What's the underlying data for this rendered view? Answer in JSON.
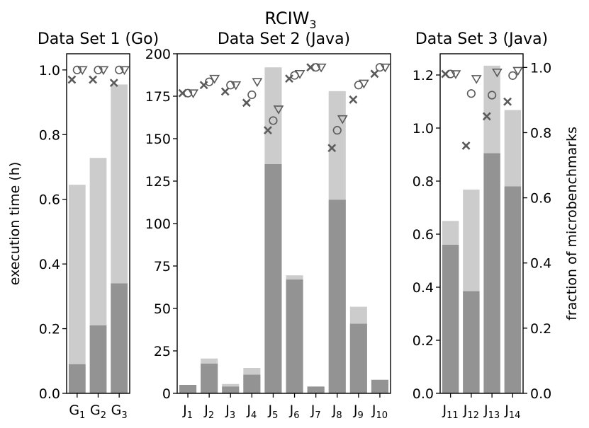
{
  "suptitle": "RCIW",
  "suptitle_sub": "3",
  "colors": {
    "dark": "#939393",
    "light": "#cccccc",
    "marker": "#5a5a5a",
    "axis": "#000000"
  },
  "legend_markers": {
    "x": "cross-marker",
    "o": "circle-marker",
    "v": "triangle-down-marker"
  },
  "left_axis_label": "execution time (h)",
  "right_axis_label": "fraction of microbenchmarks",
  "chart_data": [
    {
      "type": "bar",
      "title": "Data Set 1 (Go)",
      "categories": [
        {
          "main": "G",
          "sub": "1"
        },
        {
          "main": "G",
          "sub": "2"
        },
        {
          "main": "G",
          "sub": "3"
        }
      ],
      "ylim": [
        0,
        1.05
      ],
      "yticks": [
        0.0,
        0.2,
        0.4,
        0.6,
        0.8,
        1.0
      ],
      "ytick_labels": [
        "0.0",
        "0.2",
        "0.4",
        "0.6",
        "0.8",
        "1.0"
      ],
      "series": [
        {
          "name": "dark",
          "values": [
            0.09,
            0.21,
            0.34
          ]
        },
        {
          "name": "light",
          "values": [
            0.645,
            0.728,
            0.955
          ]
        }
      ],
      "markers_ylim": [
        0,
        1.05
      ],
      "markers": {
        "x": [
          0.97,
          0.97,
          0.96
        ],
        "o": [
          1.0,
          1.0,
          1.0
        ],
        "v": [
          1.0,
          1.0,
          1.0
        ]
      }
    },
    {
      "type": "bar",
      "title": "Data Set 2 (Java)",
      "categories": [
        {
          "main": "J",
          "sub": "1"
        },
        {
          "main": "J",
          "sub": "2"
        },
        {
          "main": "J",
          "sub": "3"
        },
        {
          "main": "J",
          "sub": "4"
        },
        {
          "main": "J",
          "sub": "5"
        },
        {
          "main": "J",
          "sub": "6"
        },
        {
          "main": "J",
          "sub": "7"
        },
        {
          "main": "J",
          "sub": "8"
        },
        {
          "main": "J",
          "sub": "9"
        },
        {
          "main": "J",
          "sub": "10"
        }
      ],
      "ylim": [
        0,
        200
      ],
      "yticks": [
        0,
        25,
        50,
        75,
        100,
        125,
        150,
        175,
        200
      ],
      "ytick_labels": [
        "0",
        "25",
        "50",
        "75",
        "100",
        "125",
        "150",
        "175",
        "200"
      ],
      "series": [
        {
          "name": "dark",
          "values": [
            5,
            17.5,
            4,
            11,
            135,
            67,
            4,
            114,
            41,
            8
          ]
        },
        {
          "name": "light",
          "values": [
            5,
            20.5,
            5.5,
            15,
            192,
            69.5,
            4,
            178,
            51,
            8
          ]
        }
      ],
      "markers_ylim": [
        0,
        1.052
      ],
      "markers": {
        "x": [
          0.93,
          0.955,
          0.935,
          0.9,
          0.815,
          0.975,
          1.01,
          0.76,
          0.91,
          0.99
        ],
        "o": [
          0.93,
          0.965,
          0.955,
          0.925,
          0.845,
          0.985,
          1.01,
          0.815,
          0.955,
          1.01
        ],
        "v": [
          0.93,
          0.975,
          0.955,
          0.965,
          0.88,
          0.99,
          1.01,
          0.85,
          0.96,
          1.01
        ]
      }
    },
    {
      "type": "bar",
      "title": "Data Set 3 (Java)",
      "categories": [
        {
          "main": "J",
          "sub": "11"
        },
        {
          "main": "J",
          "sub": "12"
        },
        {
          "main": "J",
          "sub": "13"
        },
        {
          "main": "J",
          "sub": "14"
        }
      ],
      "ylim": [
        0,
        1.28
      ],
      "yticks": [
        0.0,
        0.2,
        0.4,
        0.6,
        0.8,
        1.0,
        1.2
      ],
      "ytick_labels": [
        "0.0",
        "0.2",
        "0.4",
        "0.6",
        "0.8",
        "1.0",
        "1.2"
      ],
      "right_yticks": [
        0.0,
        0.2,
        0.4,
        0.6,
        0.8,
        1.0
      ],
      "right_ytick_labels": [
        "0.0",
        "0.2",
        "0.4",
        "0.6",
        "0.8",
        "1.0"
      ],
      "series": [
        {
          "name": "dark",
          "values": [
            0.56,
            0.385,
            0.905,
            0.78
          ]
        },
        {
          "name": "light",
          "values": [
            0.65,
            0.768,
            1.235,
            1.068
          ]
        }
      ],
      "markers_ylim": [
        0,
        1.042
      ],
      "markers": {
        "x": [
          0.98,
          0.76,
          0.85,
          0.895
        ],
        "o": [
          0.98,
          0.92,
          0.915,
          0.975
        ],
        "v": [
          0.98,
          0.965,
          0.985,
          0.99
        ]
      }
    }
  ]
}
